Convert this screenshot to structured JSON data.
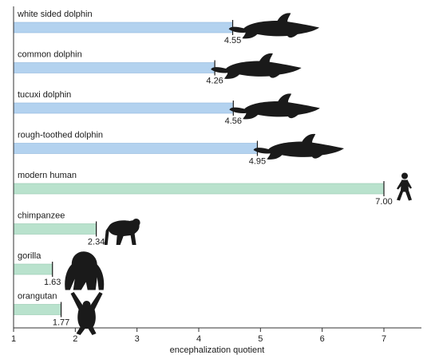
{
  "chart_data": {
    "type": "bar",
    "orientation": "horizontal",
    "xlabel": "encephalization quotient",
    "xlim": [
      1,
      7.6
    ],
    "xticks": [
      "1",
      "2",
      "3",
      "4",
      "5",
      "6",
      "7"
    ],
    "grid": false,
    "legend": "none",
    "categories": [
      "white sided dolphin",
      "common dolphin",
      "tucuxi dolphin",
      "rough-toothed dolphin",
      "modern human",
      "chimpanzee",
      "gorilla",
      "orangutan"
    ],
    "values": [
      4.55,
      4.26,
      4.56,
      4.95,
      7.0,
      2.34,
      1.63,
      1.77
    ],
    "value_labels": [
      "4.55",
      "4.26",
      "4.56",
      "4.95",
      "7.00",
      "2.34",
      "1.63",
      "1.77"
    ],
    "icons": [
      "dolphin-icon",
      "dolphin-icon",
      "dolphin-icon",
      "dolphin-icon",
      "human-icon",
      "chimpanzee-icon",
      "gorilla-icon",
      "orangutan-icon"
    ],
    "colors": {
      "dolphin_bar": "#b3d2ef",
      "primate_bar": "#b9e2cd",
      "bar_edge_dolphin": "#8fb6dc",
      "bar_edge_primate": "#93c9ad",
      "axis": "#333333",
      "silhouette": "#1a1a1a"
    },
    "bar_color_groups": [
      "dolphin",
      "dolphin",
      "dolphin",
      "dolphin",
      "primate",
      "primate",
      "primate",
      "primate"
    ]
  }
}
